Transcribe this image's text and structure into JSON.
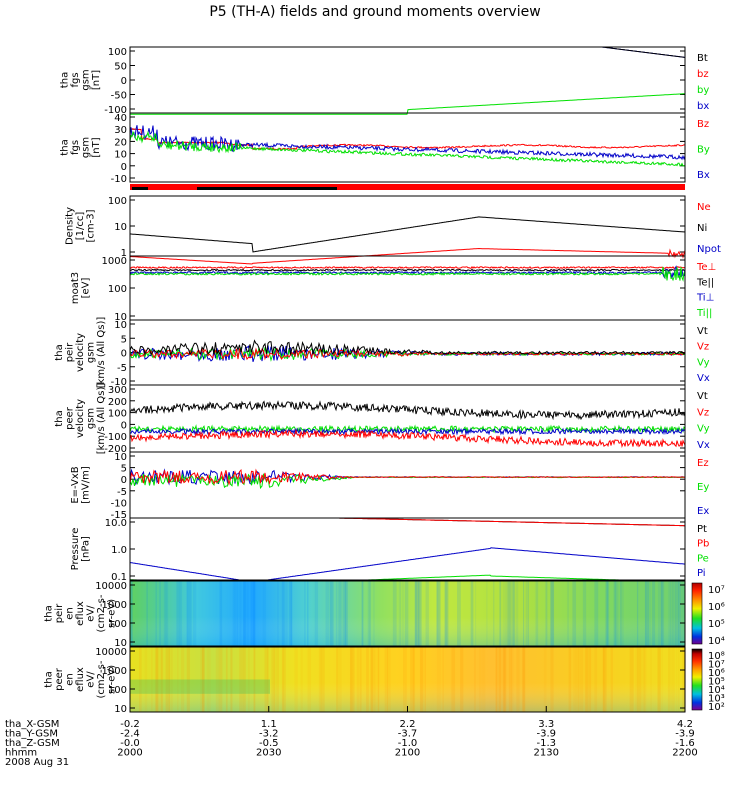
{
  "title": "P5 (TH-A) fields and ground moments overview",
  "colors": {
    "black": "#000000",
    "red": "#ff0000",
    "green": "#00e000",
    "blue": "#0000c8"
  },
  "panels": [
    {
      "id": "fgs_gsm",
      "ylabel": [
        "tha",
        "fgs",
        "gsm",
        "[nT]"
      ],
      "ticks": [
        "100",
        "50",
        "0",
        "-50",
        "-100"
      ],
      "legend": [
        {
          "t": "Bt",
          "c": "black"
        },
        {
          "t": "bz",
          "c": "red"
        },
        {
          "t": "by",
          "c": "green"
        },
        {
          "t": "bx",
          "c": "blue"
        }
      ]
    },
    {
      "id": "fgs_gsm_zoom",
      "ylabel": [
        "tha",
        "fgs",
        "gsm",
        "[nT]"
      ],
      "ticks": [
        "40",
        "30",
        "20",
        "10",
        "0",
        "-10"
      ],
      "legend": [
        {
          "t": "Bz",
          "c": "red"
        },
        {
          "t": "By",
          "c": "green"
        },
        {
          "t": "Bx",
          "c": "blue"
        }
      ]
    },
    {
      "id": "density",
      "ylabel": [
        "Density",
        "[1/cc]",
        "[cm-3]"
      ],
      "ticks": [
        "100",
        "10",
        "1"
      ],
      "legend": [
        {
          "t": "Ne",
          "c": "red"
        },
        {
          "t": "Ni",
          "c": "black"
        },
        {
          "t": "Npot",
          "c": "blue"
        }
      ]
    },
    {
      "id": "temp",
      "ylabel": [
        "moat3",
        "[eV]"
      ],
      "ticks": [
        "1000",
        "100",
        "10"
      ],
      "legend": [
        {
          "t": "Te⊥",
          "c": "red"
        },
        {
          "t": "Te||",
          "c": "black"
        },
        {
          "t": "Ti⊥",
          "c": "blue"
        },
        {
          "t": "Ti||",
          "c": "green"
        }
      ]
    },
    {
      "id": "peir_vel",
      "ylabel": [
        "tha",
        "peir",
        "velocity",
        "gsm",
        "[km/s (All Qs)]"
      ],
      "ticks": [
        "10",
        "5",
        "0",
        "-5",
        "-10"
      ],
      "legend": [
        {
          "t": "Vt",
          "c": "black"
        },
        {
          "t": "Vz",
          "c": "red"
        },
        {
          "t": "Vy",
          "c": "green"
        },
        {
          "t": "Vx",
          "c": "blue"
        }
      ]
    },
    {
      "id": "peer_vel",
      "ylabel": [
        "tha",
        "peer",
        "velocity",
        "gsm",
        "[km/s (All Qs)]"
      ],
      "ticks": [
        "300",
        "200",
        "100",
        "0",
        "-100",
        "-200"
      ],
      "legend": [
        {
          "t": "Vt",
          "c": "black"
        },
        {
          "t": "Vz",
          "c": "red"
        },
        {
          "t": "Vy",
          "c": "green"
        },
        {
          "t": "Vx",
          "c": "blue"
        }
      ]
    },
    {
      "id": "efield",
      "ylabel": [
        "E=-VxB",
        "[mV/m]"
      ],
      "ticks": [
        "10",
        "5",
        "0",
        "-5",
        "-10",
        "-15"
      ],
      "legend": [
        {
          "t": "Ez",
          "c": "red"
        },
        {
          "t": "Ey",
          "c": "green"
        },
        {
          "t": "Ex",
          "c": "blue"
        }
      ]
    },
    {
      "id": "pressure",
      "ylabel": [
        "Pressure",
        "[nPa]"
      ],
      "ticks": [
        "10.0",
        "1.0",
        "0.1"
      ],
      "legend": [
        {
          "t": "Pt",
          "c": "black"
        },
        {
          "t": "Pb",
          "c": "red"
        },
        {
          "t": "Pe",
          "c": "green"
        },
        {
          "t": "Pi",
          "c": "blue"
        }
      ]
    },
    {
      "id": "peir_spec",
      "ylabel": [
        "tha",
        "peir",
        "en",
        "eflux",
        "eV/",
        "(cm2-s-",
        "sr-eV)"
      ],
      "ticks": [
        "10000",
        "1000",
        "100",
        "10"
      ],
      "cbar": [
        "10⁷",
        "10⁶",
        "10⁵",
        "10⁴"
      ]
    },
    {
      "id": "peer_spec",
      "ylabel": [
        "tha",
        "peer",
        "en",
        "eflux",
        "eV/",
        "(cm2-s-",
        "sr-eV)"
      ],
      "ticks": [
        "10000",
        "1000",
        "100",
        "10"
      ],
      "cbar": [
        "10⁸",
        "10⁷",
        "10⁶",
        "10⁵",
        "10⁴",
        "10³",
        "10²"
      ]
    }
  ],
  "xaxis": {
    "rows": [
      {
        "label": "tha_X-GSM",
        "values": [
          "-0.2",
          "1.1",
          "2.2",
          "3.3",
          "4.2"
        ]
      },
      {
        "label": "tha_Y-GSM",
        "values": [
          "-2.4",
          "-3.2",
          "-3.7",
          "-3.9",
          "-3.9"
        ]
      },
      {
        "label": "tha_Z-GSM",
        "values": [
          "-0.0",
          "-0.5",
          "-1.0",
          "-1.3",
          "-1.6"
        ]
      },
      {
        "label": "hhmm",
        "values": [
          "2000",
          "2030",
          "2100",
          "2130",
          "2200"
        ]
      }
    ],
    "date": "2008 Aug 31"
  },
  "chart_data": {
    "type": "line",
    "title": "P5 (TH-A) fields and ground moments overview",
    "x_time": [
      "2000",
      "2030",
      "2100",
      "2130",
      "2200"
    ],
    "series_summary": [
      {
        "panel": "fgs_gsm",
        "name": "Bt",
        "approx": "decreasing ~110 to ~85 nT"
      },
      {
        "panel": "fgs_gsm",
        "name": "by",
        "approx": "rising from ~-100 to ~-45 nT after 2100"
      },
      {
        "panel": "density",
        "name": "Ni",
        "approx": "~3 at 2000, min ~0.5 near 2030, ~20 near 2125"
      },
      {
        "panel": "pressure",
        "name": "Pi",
        "approx": "~0.2 at 2000, min ~0.03 near 2030, ~1.0 near 2130"
      }
    ]
  }
}
